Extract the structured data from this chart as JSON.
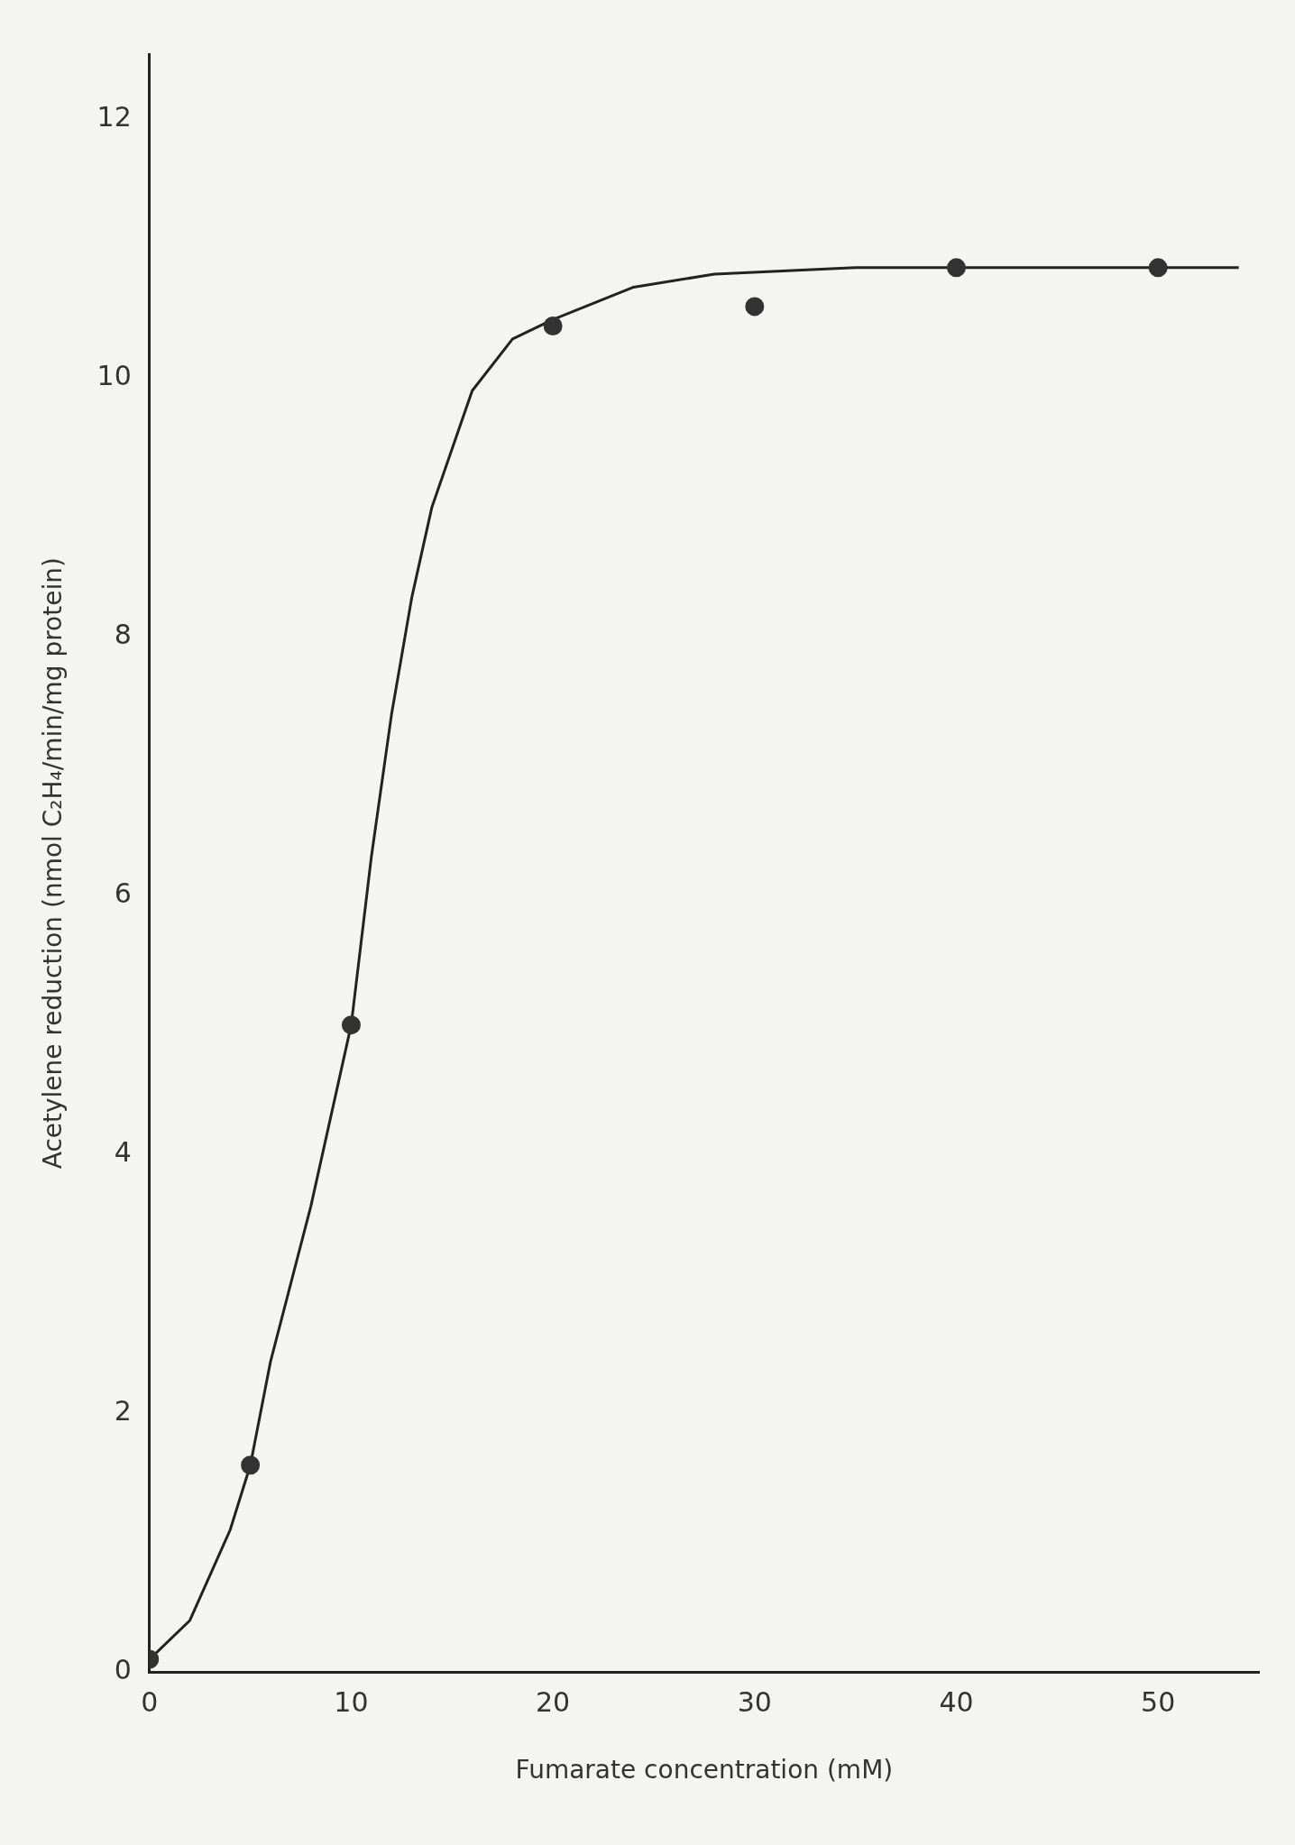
{
  "chart_data": {
    "type": "scatter",
    "xlabel": "Fumarate concentration (mM)",
    "ylabel": "Acetylene reduction (nmol C₂H₄/min/mg protein)",
    "xlim": [
      0,
      55
    ],
    "ylim": [
      0,
      12.5
    ],
    "xticks": [
      0,
      10,
      20,
      30,
      40,
      50
    ],
    "yticks": [
      0,
      2,
      4,
      6,
      8,
      10,
      12
    ],
    "grid": false,
    "legend": false,
    "series": [
      {
        "type": "scatter",
        "color": "#333333",
        "marker": "circle",
        "x": [
          0,
          5,
          10,
          20,
          30,
          40,
          50
        ],
        "values": [
          0.1,
          1.6,
          5.0,
          10.4,
          10.55,
          10.85,
          10.85
        ]
      },
      {
        "type": "line",
        "color": "#222222",
        "marker": "none",
        "line_style": "solid",
        "x": [
          0,
          2,
          4,
          5,
          6,
          8,
          10,
          11,
          12,
          13,
          14,
          16,
          18,
          20,
          24,
          28,
          35,
          54
        ],
        "values": [
          0.1,
          0.4,
          1.1,
          1.6,
          2.4,
          3.6,
          5.0,
          6.3,
          7.4,
          8.3,
          9.0,
          9.9,
          10.3,
          10.45,
          10.7,
          10.8,
          10.85,
          10.85
        ]
      }
    ]
  }
}
